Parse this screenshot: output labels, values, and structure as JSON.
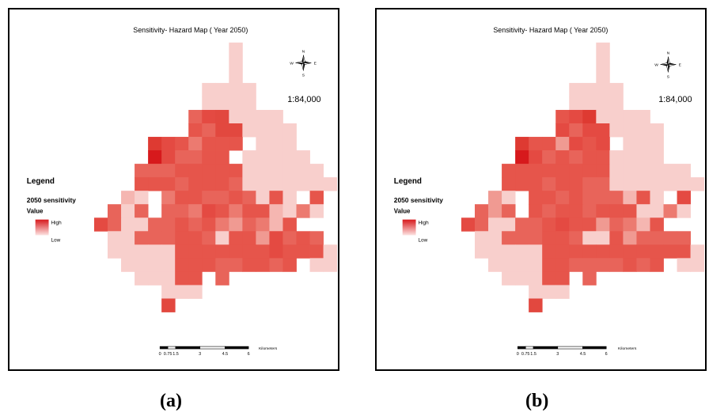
{
  "panels": [
    {
      "id": "a",
      "title": "Sensitivity- Hazard Map ( Year 2050)",
      "scale_text": "1:84,000",
      "legend": {
        "heading": "Legend",
        "layer": "2050 sensitivity",
        "field": "Value",
        "high": "High",
        "low": "Low"
      },
      "compass": {
        "n": "N",
        "s": "S",
        "e": "E",
        "w": "W"
      },
      "scalebar": {
        "ticks": [
          "0",
          "0.75",
          "1.5",
          "3",
          "4.5",
          "6"
        ],
        "unit": "Kilometers"
      },
      "caption": "(a)",
      "grid": [
        "..........9.........",
        "..........9.........",
        "..........9.........",
        "........9999........",
        "........9999........",
        ".......5329999......",
        ".......45229999.....",
        "....1346444.999.....",
        "....035544.99999....",
        "...55544444999999...",
        "...444544459999999..",
        "..89.6445545949.4...",
        ".595.556346448969...",
        "359955454675684.....",
        ".9955544594473545...",
        ".99999444444434449..",
        "..9999444554454.99..",
        "...99944.5..........",
        ".....999............",
        ".....2.............."
      ]
    },
    {
      "id": "b",
      "title": "Sensitivity- Hazard Map ( Year 2050)",
      "scale_text": "1:84,000",
      "legend": {
        "heading": "Legend",
        "layer": "2050 sensitivity",
        "field": "Value",
        "high": "High",
        "low": "Low"
      },
      "compass": {
        "n": "N",
        "s": "S",
        "e": "E",
        "w": "W"
      },
      "scalebar": {
        "ticks": [
          "0",
          "0.75",
          "1.5",
          "3",
          "4.5",
          "6"
        ],
        "unit": "Kilometers"
      },
      "caption": "(b)",
      "grid": [
        "..........9.........",
        "..........9.........",
        "..........9.........",
        "........9999........",
        "........9999........",
        ".......4319999......",
        ".......35339999.....",
        "....1447343.999.....",
        "....03545449999.....",
        "...44444444999999...",
        "...444544559999999..",
        "..79.4454555849.3...",
        ".575.454454449969...",
        "359955434475684.....",
        ".9955544599475555...",
        ".99999444444444449..",
        "..9999445555454.99..",
        "...99944.5..........",
        ".....999............",
        ".....2.............."
      ]
    }
  ],
  "colors": {
    "frame": "#000000",
    "ramp": [
      "#d7191c",
      "#de3a32",
      "#e2483f",
      "#e44a42",
      "#e6554b",
      "#e8645a",
      "#ec7a70",
      "#f09a92",
      "#f5b6b1",
      "#f8cfcc"
    ]
  }
}
